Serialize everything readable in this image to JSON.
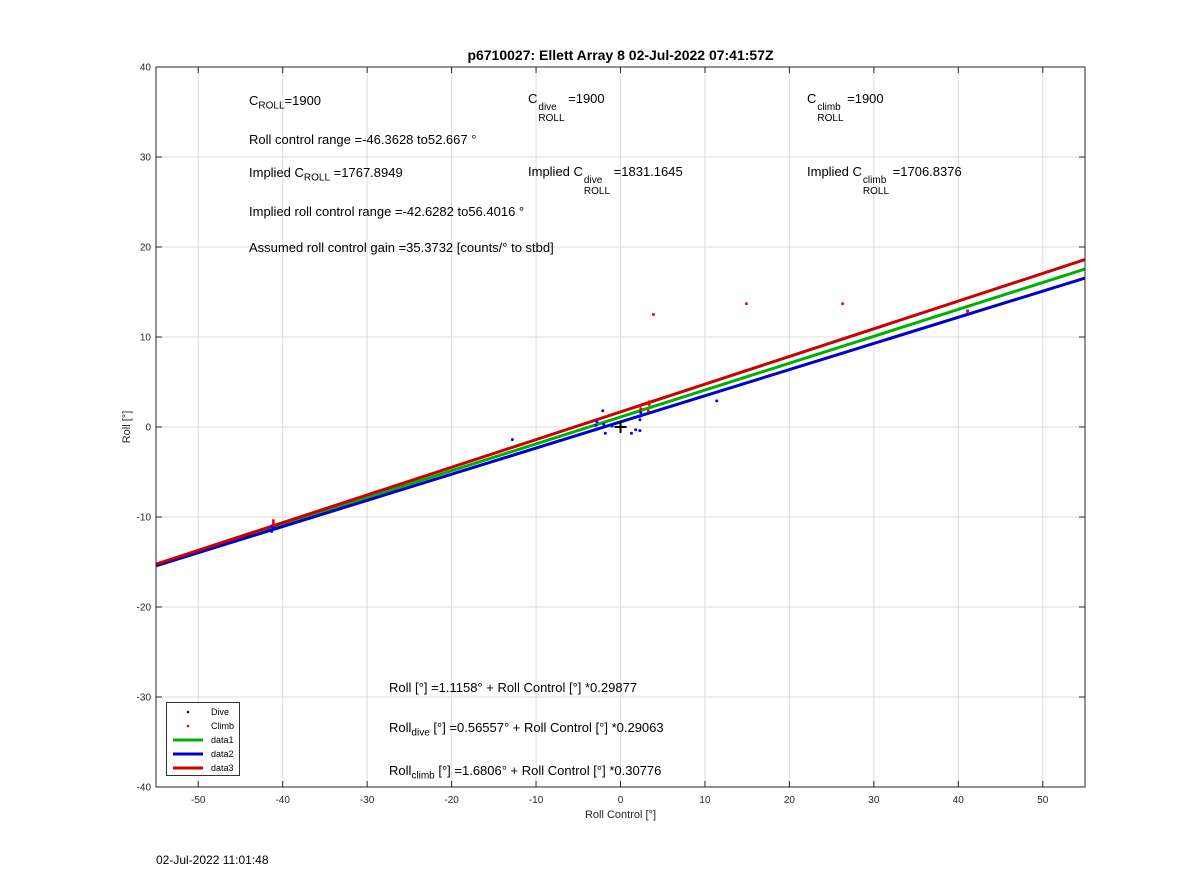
{
  "chart_data": {
    "type": "scatter",
    "title": "p6710027: Ellett Array 8 02-Jul-2022 07:41:57Z",
    "xlabel": "Roll Control [°]",
    "ylabel": "Roll [°]",
    "xlim": [
      -55,
      55
    ],
    "ylim": [
      -40,
      40
    ],
    "xticks": [
      -50,
      -40,
      -30,
      -20,
      -10,
      0,
      10,
      20,
      30,
      40,
      50
    ],
    "yticks": [
      -40,
      -30,
      -20,
      -10,
      0,
      10,
      20,
      30,
      40
    ],
    "grid": true,
    "legend_position": "bottom-left",
    "series": [
      {
        "name": "Dive",
        "kind": "points",
        "color": "#0000ff",
        "points": [
          [
            -41.3,
            -11.6
          ],
          [
            -41.2,
            -11.4
          ],
          [
            -41.1,
            -11.2
          ],
          [
            -41.3,
            -11.0
          ],
          [
            -12.8,
            -1.4
          ],
          [
            -3.0,
            -0.3
          ],
          [
            -2.9,
            0.2
          ],
          [
            -2.8,
            0.6
          ],
          [
            -2.0,
            0.3
          ],
          [
            -2.1,
            1.8
          ],
          [
            -1.8,
            -0.7
          ],
          [
            -1.0,
            0.1
          ],
          [
            1.3,
            -0.7
          ],
          [
            1.8,
            -0.3
          ],
          [
            2.3,
            -0.4
          ],
          [
            2.3,
            0.8
          ],
          [
            2.3,
            1.2
          ],
          [
            2.4,
            1.6
          ],
          [
            11.4,
            2.9
          ],
          [
            41.1,
            12.6
          ],
          [
            41.1,
            12.9
          ]
        ]
      },
      {
        "name": "Climb",
        "kind": "points",
        "color": "#ff0000",
        "points": [
          [
            -41.1,
            -10.4
          ],
          [
            -41.1,
            -10.7
          ],
          [
            -41.0,
            -10.9
          ],
          [
            2.3,
            2.3
          ],
          [
            2.4,
            2.0
          ],
          [
            3.3,
            1.8
          ],
          [
            3.4,
            2.5
          ],
          [
            3.4,
            2.8
          ],
          [
            3.9,
            12.5
          ],
          [
            14.9,
            13.7
          ],
          [
            26.3,
            13.7
          ],
          [
            41.1,
            12.9
          ]
        ]
      },
      {
        "name": "data1",
        "kind": "line",
        "color": "#00b000",
        "intercept": 1.1158,
        "slope": 0.29877
      },
      {
        "name": "data2",
        "kind": "line",
        "color": "#0000cc",
        "intercept": 0.56557,
        "slope": 0.29063
      },
      {
        "name": "data3",
        "kind": "line",
        "color": "#cc0000",
        "intercept": 1.6806,
        "slope": 0.30776
      }
    ],
    "marker": {
      "x": 0,
      "y": 0,
      "symbol": "+"
    },
    "annotations": {
      "c_roll": {
        "base": "C",
        "sub": "ROLL",
        "value": "=1900"
      },
      "c_roll_dive": {
        "base": "C",
        "sup": "dive",
        "sub": "ROLL",
        "value": " =1900"
      },
      "c_roll_climb": {
        "base": "C",
        "sup": "climb",
        "sub": "ROLL",
        "value": " =1900"
      },
      "roll_range": "Roll control range =-46.3628 to52.667 °",
      "implied_c_roll": {
        "prefix": "Implied C",
        "sub": "ROLL",
        "value": " =1767.8949"
      },
      "implied_c_roll_dive": {
        "prefix": "Implied C",
        "sup": "dive",
        "sub": "ROLL",
        "value": " =1831.1645"
      },
      "implied_c_roll_climb": {
        "prefix": "Implied C",
        "sup": "climb",
        "sub": "ROLL",
        "value": " =1706.8376"
      },
      "implied_range": "Implied roll control range =-42.6282 to56.4016 °",
      "gain": "Assumed roll control gain =35.3732 [counts/° to stbd]",
      "fit_all": "Roll [°] =1.1158° + Roll Control [°] *0.29877",
      "fit_dive": {
        "base": "Roll",
        "sub": "dive",
        "rest": " [°] =0.56557° + Roll Control [°] *0.29063"
      },
      "fit_climb": {
        "base": "Roll",
        "sub": "climb",
        "rest": " [°] =1.6806° + Roll Control [°] *0.30776"
      }
    }
  },
  "timestamp": "02-Jul-2022 11:01:48"
}
